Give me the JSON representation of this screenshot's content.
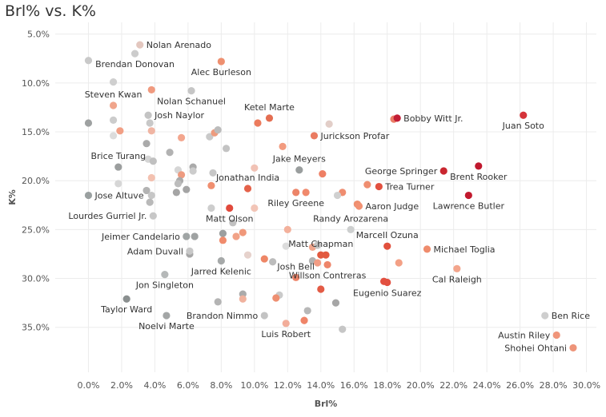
{
  "chart_data": {
    "type": "scatter",
    "title": "Brl% vs. K%",
    "xlabel": "Brl%",
    "ylabel": "K%",
    "xlim": [
      -2,
      30.6
    ],
    "ylim": [
      3.8,
      39.6
    ],
    "y_reversed": true,
    "grid": true,
    "xticks": [
      {
        "v": 0,
        "label": "0.0%"
      },
      {
        "v": 2,
        "label": "2.0%"
      },
      {
        "v": 4,
        "label": "4.0%"
      },
      {
        "v": 6,
        "label": "6.0%"
      },
      {
        "v": 8,
        "label": "8.0%"
      },
      {
        "v": 10,
        "label": "10.0%"
      },
      {
        "v": 12,
        "label": "12.0%"
      },
      {
        "v": 14,
        "label": "14.0%"
      },
      {
        "v": 16,
        "label": "16.0%"
      },
      {
        "v": 18,
        "label": "18.0%"
      },
      {
        "v": 20,
        "label": "20.0%"
      },
      {
        "v": 22,
        "label": "22.0%"
      },
      {
        "v": 24,
        "label": "24.0%"
      },
      {
        "v": 26,
        "label": "26.0%"
      },
      {
        "v": 28,
        "label": "28.0%"
      },
      {
        "v": 30,
        "label": "30.0%"
      }
    ],
    "yticks": [
      {
        "v": 5,
        "label": "5.0%"
      },
      {
        "v": 10,
        "label": "10.0%"
      },
      {
        "v": 15,
        "label": "15.0%"
      },
      {
        "v": 20,
        "label": "20.0%"
      },
      {
        "v": 25,
        "label": "25.0%"
      },
      {
        "v": 30,
        "label": "30.0%"
      },
      {
        "v": 35,
        "label": "35.0%"
      }
    ],
    "labeled_points": [
      {
        "name": "Nolan Arenado",
        "x": 3.1,
        "y": 6.1,
        "color": "#e3c7bf",
        "anchor": "right"
      },
      {
        "name": "Brendan Donovan",
        "x": 2.8,
        "y": 7.0,
        "color": "#cccccc",
        "anchor": "below"
      },
      {
        "name": "Alec Burleson",
        "x": 8.0,
        "y": 7.8,
        "color": "#ee9070",
        "anchor": "below"
      },
      {
        "name": "Steven Kwan",
        "x": 1.5,
        "y": 12.3,
        "color": "#f0a58c",
        "anchor": "above"
      },
      {
        "name": "Nolan Schanuel",
        "x": 6.2,
        "y": 10.8,
        "color": "#c6c6c6",
        "anchor": "below"
      },
      {
        "name": "Josh Naylor",
        "x": 3.6,
        "y": 13.3,
        "color": "#c4c4c4",
        "anchor": "right"
      },
      {
        "name": "Ketel Marte",
        "x": 10.9,
        "y": 13.6,
        "color": "#e46e52",
        "anchor": "above"
      },
      {
        "name": "Bobby Witt Jr.",
        "x": 18.6,
        "y": 13.6,
        "color": "#c21d35",
        "anchor": "right"
      },
      {
        "name": "Juan Soto",
        "x": 26.2,
        "y": 13.3,
        "color": "#d5343a",
        "anchor": "below"
      },
      {
        "name": "Jurickson Profar",
        "x": 13.6,
        "y": 15.4,
        "color": "#ea7b61",
        "anchor": "right"
      },
      {
        "name": "Brice Turang",
        "x": 1.8,
        "y": 18.6,
        "color": "#9b9e9e",
        "anchor": "above"
      },
      {
        "name": "Jake Meyers",
        "x": 12.7,
        "y": 18.9,
        "color": "#9a9e9e",
        "anchor": "above"
      },
      {
        "name": "George Springer",
        "x": 21.4,
        "y": 19.0,
        "color": "#c9262f",
        "anchor": "left"
      },
      {
        "name": "Brent Rooker",
        "x": 23.5,
        "y": 18.5,
        "color": "#c0182e",
        "anchor": "below"
      },
      {
        "name": "Jonathan India",
        "x": 9.6,
        "y": 20.8,
        "color": "#e4624a",
        "anchor": "above"
      },
      {
        "name": "Trea Turner",
        "x": 17.5,
        "y": 20.6,
        "color": "#e2503f",
        "anchor": "right"
      },
      {
        "name": "Jose Altuve",
        "x": 0.0,
        "y": 21.5,
        "color": "#9aa0a0",
        "anchor": "right"
      },
      {
        "name": "Riley Greene",
        "x": 12.5,
        "y": 21.2,
        "color": "#ec8468",
        "anchor": "below"
      },
      {
        "name": "Aaron Judge",
        "x": 16.3,
        "y": 22.6,
        "color": "#f29172",
        "anchor": "right"
      },
      {
        "name": "Lawrence Butler",
        "x": 22.9,
        "y": 21.5,
        "color": "#c21a2e",
        "anchor": "below"
      },
      {
        "name": "Lourdes Gurriel Jr.",
        "x": 3.9,
        "y": 23.6,
        "color": "#c7c7c7",
        "anchor": "left"
      },
      {
        "name": "Randy Arozarena",
        "x": 15.8,
        "y": 25.0,
        "color": "#cdcfcf",
        "anchor": "above"
      },
      {
        "name": "Matt Olson",
        "x": 8.5,
        "y": 22.8,
        "color": "#e14a3c",
        "anchor": "below"
      },
      {
        "name": "Jeimer Candelario",
        "x": 5.9,
        "y": 25.7,
        "color": "#a0a5a5",
        "anchor": "left"
      },
      {
        "name": "Marcell Ozuna",
        "x": 18.0,
        "y": 26.7,
        "color": "#e1503d",
        "anchor": "above"
      },
      {
        "name": "Matt Chapman",
        "x": 14.0,
        "y": 27.6,
        "color": "#e25a40",
        "anchor": "above"
      },
      {
        "name": "Michael Toglia",
        "x": 20.4,
        "y": 27.0,
        "color": "#ef8c6d",
        "anchor": "right"
      },
      {
        "name": "Adam Duvall",
        "x": 6.1,
        "y": 27.2,
        "color": "#c8c8c8",
        "anchor": "left"
      },
      {
        "name": "Jarred Kelenic",
        "x": 8.0,
        "y": 28.2,
        "color": "#a6a9a9",
        "anchor": "below"
      },
      {
        "name": "Josh Bell",
        "x": 12.5,
        "y": 29.9,
        "color": "#ee8468",
        "anchor": "above"
      },
      {
        "name": "Willson Contreras",
        "x": 14.4,
        "y": 28.6,
        "color": "#ee856a",
        "anchor": "below"
      },
      {
        "name": "Cal Raleigh",
        "x": 22.2,
        "y": 29.0,
        "color": "#f3a58c",
        "anchor": "below"
      },
      {
        "name": "Jon Singleton",
        "x": 4.6,
        "y": 29.6,
        "color": "#b5b8b8",
        "anchor": "below"
      },
      {
        "name": "Eugenio Suarez",
        "x": 18.0,
        "y": 30.4,
        "color": "#e25040",
        "anchor": "below"
      },
      {
        "name": "Taylor Ward",
        "x": 2.3,
        "y": 32.1,
        "color": "#8a8f8f",
        "anchor": "below"
      },
      {
        "name": "Ben Rice",
        "x": 27.5,
        "y": 33.8,
        "color": "#cecece",
        "anchor": "right"
      },
      {
        "name": "Brandon Nimmo",
        "x": 10.6,
        "y": 33.8,
        "color": "#c3c3c3",
        "anchor": "left"
      },
      {
        "name": "Noelvi Marte",
        "x": 4.7,
        "y": 33.8,
        "color": "#a3a6a6",
        "anchor": "below"
      },
      {
        "name": "Luis Robert",
        "x": 11.9,
        "y": 34.6,
        "color": "#f2ad9a",
        "anchor": "below"
      },
      {
        "name": "Austin Riley",
        "x": 28.2,
        "y": 35.8,
        "color": "#f0957a",
        "anchor": "left"
      },
      {
        "name": "Shohei Ohtani",
        "x": 29.2,
        "y": 37.1,
        "color": "#ee9479",
        "anchor": "left"
      }
    ],
    "unlabeled_points": [
      {
        "x": 0.0,
        "y": 7.7,
        "color": "#c9c9c9"
      },
      {
        "x": 1.5,
        "y": 9.9,
        "color": "#cfcfcf"
      },
      {
        "x": 3.8,
        "y": 10.7,
        "color": "#f09a7f"
      },
      {
        "x": 0.0,
        "y": 14.1,
        "color": "#9ea1a1"
      },
      {
        "x": 1.5,
        "y": 13.8,
        "color": "#cccccc"
      },
      {
        "x": 3.7,
        "y": 14.1,
        "color": "#c8c8c8"
      },
      {
        "x": 1.9,
        "y": 14.9,
        "color": "#f19f85"
      },
      {
        "x": 3.8,
        "y": 14.9,
        "color": "#f0b5a3"
      },
      {
        "x": 1.5,
        "y": 15.4,
        "color": "#dcdcdc"
      },
      {
        "x": 5.6,
        "y": 15.6,
        "color": "#f3a68e"
      },
      {
        "x": 7.3,
        "y": 15.5,
        "color": "#c9c9c9"
      },
      {
        "x": 7.6,
        "y": 15.1,
        "color": "#ed9b7e"
      },
      {
        "x": 7.8,
        "y": 14.8,
        "color": "#bcbcbc"
      },
      {
        "x": 10.2,
        "y": 14.1,
        "color": "#ec7b5d"
      },
      {
        "x": 14.5,
        "y": 14.2,
        "color": "#e2cec8"
      },
      {
        "x": 18.4,
        "y": 13.7,
        "color": "#eb7d66"
      },
      {
        "x": 3.5,
        "y": 16.2,
        "color": "#aaaaaa"
      },
      {
        "x": 8.3,
        "y": 16.7,
        "color": "#c3c3c3"
      },
      {
        "x": 11.7,
        "y": 16.5,
        "color": "#f29b7f"
      },
      {
        "x": 4.9,
        "y": 17.1,
        "color": "#b2b2b2"
      },
      {
        "x": 3.6,
        "y": 17.8,
        "color": "#d5d5d5"
      },
      {
        "x": 3.9,
        "y": 18.0,
        "color": "#c0c0c0"
      },
      {
        "x": 10.0,
        "y": 18.7,
        "color": "#f1c2b5"
      },
      {
        "x": 5.4,
        "y": 18.9,
        "color": "#d6d6d6"
      },
      {
        "x": 6.3,
        "y": 18.6,
        "color": "#aaaaaa"
      },
      {
        "x": 6.3,
        "y": 19.0,
        "color": "#cccccc"
      },
      {
        "x": 5.6,
        "y": 19.4,
        "color": "#ee9b80"
      },
      {
        "x": 7.5,
        "y": 19.2,
        "color": "#c7c7c7"
      },
      {
        "x": 14.1,
        "y": 19.3,
        "color": "#ee7f64"
      },
      {
        "x": 1.8,
        "y": 20.3,
        "color": "#d6d6d6"
      },
      {
        "x": 3.8,
        "y": 19.7,
        "color": "#f3c1b0"
      },
      {
        "x": 5.5,
        "y": 20.0,
        "color": "#aaaaaa"
      },
      {
        "x": 5.4,
        "y": 20.3,
        "color": "#bcbcbc"
      },
      {
        "x": 7.4,
        "y": 20.5,
        "color": "#f08f70"
      },
      {
        "x": 3.5,
        "y": 21.0,
        "color": "#b3b3b3"
      },
      {
        "x": 3.8,
        "y": 21.5,
        "color": "#c6c6c6"
      },
      {
        "x": 5.3,
        "y": 21.2,
        "color": "#a5a5a5"
      },
      {
        "x": 5.9,
        "y": 20.9,
        "color": "#a4a4a4"
      },
      {
        "x": 13.1,
        "y": 21.2,
        "color": "#f0896c"
      },
      {
        "x": 15.3,
        "y": 21.2,
        "color": "#ef8d70"
      },
      {
        "x": 15.0,
        "y": 21.5,
        "color": "#d0d0d0"
      },
      {
        "x": 16.8,
        "y": 20.4,
        "color": "#ef8e70"
      },
      {
        "x": 3.7,
        "y": 22.2,
        "color": "#b9b9b9"
      },
      {
        "x": 7.4,
        "y": 22.8,
        "color": "#cdcdcd"
      },
      {
        "x": 10.0,
        "y": 22.8,
        "color": "#f2c5b7"
      },
      {
        "x": 16.2,
        "y": 22.4,
        "color": "#ee8e6e"
      },
      {
        "x": 8.7,
        "y": 24.3,
        "color": "#c1c1c1"
      },
      {
        "x": 12.0,
        "y": 25.0,
        "color": "#f3b19c"
      },
      {
        "x": 8.1,
        "y": 25.4,
        "color": "#9c9f9f"
      },
      {
        "x": 9.3,
        "y": 25.3,
        "color": "#f0987a"
      },
      {
        "x": 8.9,
        "y": 25.7,
        "color": "#f1a287"
      },
      {
        "x": 6.4,
        "y": 25.7,
        "color": "#9fa2a2"
      },
      {
        "x": 8.1,
        "y": 26.1,
        "color": "#f08b6c"
      },
      {
        "x": 11.9,
        "y": 26.7,
        "color": "#dcdcdc"
      },
      {
        "x": 13.5,
        "y": 26.8,
        "color": "#f1a58c"
      },
      {
        "x": 13.8,
        "y": 26.6,
        "color": "#c3c3c3"
      },
      {
        "x": 14.3,
        "y": 27.6,
        "color": "#e25a40"
      },
      {
        "x": 6.1,
        "y": 27.5,
        "color": "#a6a6a6"
      },
      {
        "x": 9.6,
        "y": 27.6,
        "color": "#e6d2cc"
      },
      {
        "x": 10.6,
        "y": 28.0,
        "color": "#ee8666"
      },
      {
        "x": 11.1,
        "y": 28.3,
        "color": "#bcbcbc"
      },
      {
        "x": 13.5,
        "y": 28.2,
        "color": "#b2b2b2"
      },
      {
        "x": 13.8,
        "y": 28.4,
        "color": "#f29c84"
      },
      {
        "x": 18.7,
        "y": 28.4,
        "color": "#f3a085"
      },
      {
        "x": 17.8,
        "y": 30.3,
        "color": "#e25040"
      },
      {
        "x": 9.3,
        "y": 31.6,
        "color": "#ababab"
      },
      {
        "x": 9.3,
        "y": 32.1,
        "color": "#f0b29e"
      },
      {
        "x": 11.5,
        "y": 31.7,
        "color": "#cacaca"
      },
      {
        "x": 11.3,
        "y": 32.0,
        "color": "#ee8f71"
      },
      {
        "x": 7.8,
        "y": 32.4,
        "color": "#b4b4b4"
      },
      {
        "x": 14.0,
        "y": 31.1,
        "color": "#e35b45"
      },
      {
        "x": 14.9,
        "y": 32.5,
        "color": "#a6a6a6"
      },
      {
        "x": 13.2,
        "y": 33.3,
        "color": "#b8b8b8"
      },
      {
        "x": 13.0,
        "y": 34.3,
        "color": "#ef8468"
      },
      {
        "x": 15.3,
        "y": 35.2,
        "color": "#c6c6c6"
      }
    ]
  }
}
